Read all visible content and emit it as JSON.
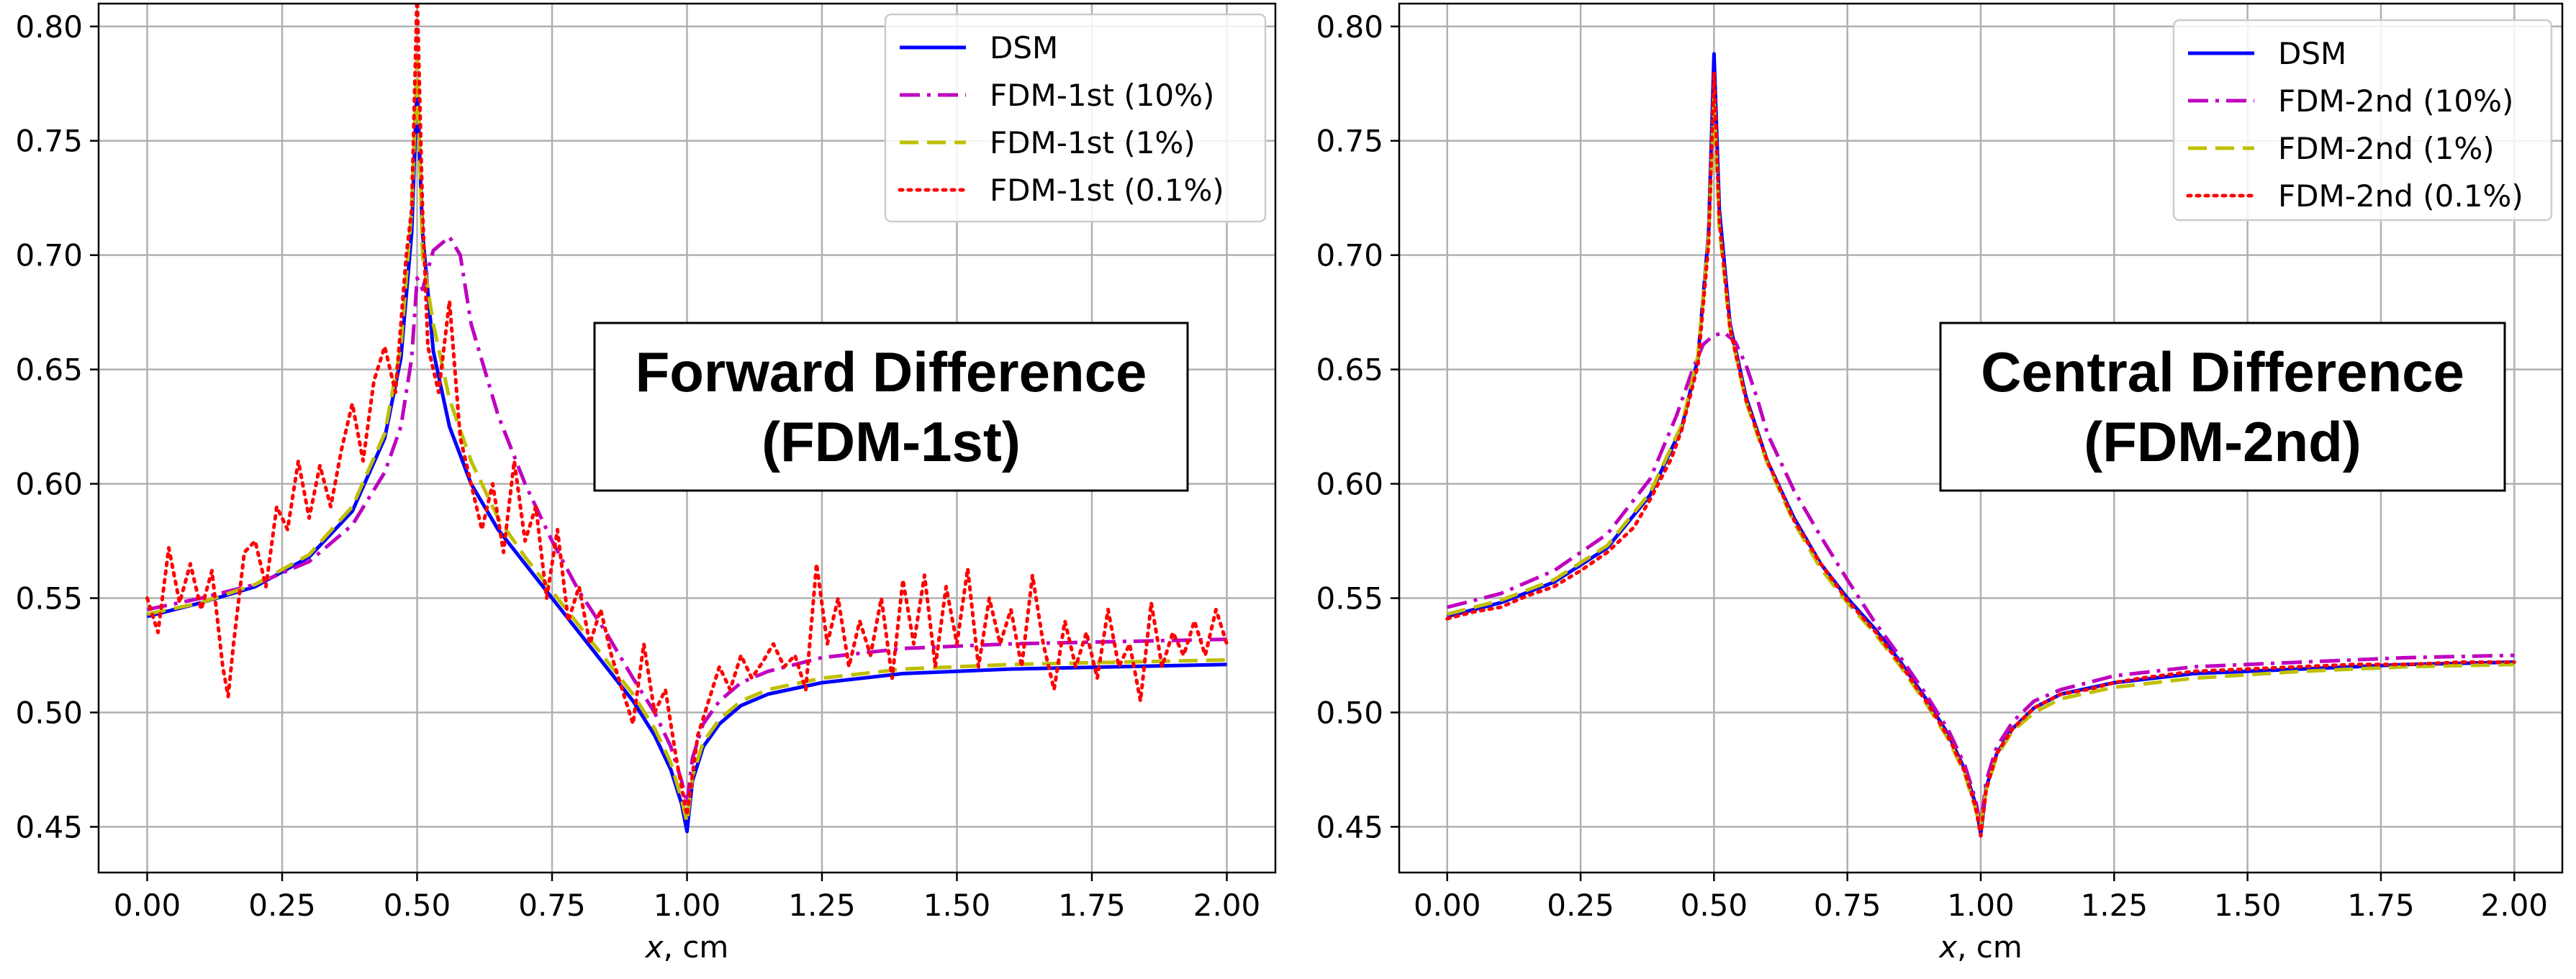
{
  "chart_data": [
    {
      "type": "line",
      "title": "",
      "xlabel_var": "x",
      "xlabel_unit": ", cm",
      "ylabel": "",
      "xlim": [
        -0.09,
        2.09
      ],
      "ylim": [
        0.43,
        0.81
      ],
      "xticks": [
        "0.00",
        "0.25",
        "0.50",
        "0.75",
        "1.00",
        "1.25",
        "1.50",
        "1.75",
        "2.00"
      ],
      "yticks": [
        "0.45",
        "0.50",
        "0.55",
        "0.60",
        "0.65",
        "0.70",
        "0.75",
        "0.80"
      ],
      "grid": true,
      "legend_position": "top-right",
      "annotation": {
        "line1": "Forward Difference",
        "line2": "(FDM-1st)"
      },
      "series": [
        {
          "name": "DSM",
          "color": "#0000ff",
          "dash": "solid",
          "x": [
            0.0,
            0.1,
            0.2,
            0.3,
            0.38,
            0.44,
            0.47,
            0.49,
            0.5,
            0.51,
            0.53,
            0.56,
            0.6,
            0.65,
            0.7,
            0.75,
            0.8,
            0.85,
            0.9,
            0.94,
            0.97,
            0.99,
            1.0,
            1.01,
            1.03,
            1.06,
            1.1,
            1.15,
            1.25,
            1.4,
            1.6,
            1.8,
            2.0
          ],
          "y": [
            0.542,
            0.548,
            0.555,
            0.568,
            0.588,
            0.62,
            0.655,
            0.71,
            0.775,
            0.71,
            0.658,
            0.625,
            0.6,
            0.58,
            0.565,
            0.55,
            0.535,
            0.52,
            0.505,
            0.49,
            0.475,
            0.46,
            0.448,
            0.47,
            0.485,
            0.495,
            0.503,
            0.508,
            0.513,
            0.517,
            0.519,
            0.52,
            0.521
          ]
        },
        {
          "name": "FDM-1st (10%)",
          "color": "#bf00bf",
          "dash": "dashdot",
          "x": [
            0.0,
            0.1,
            0.2,
            0.3,
            0.38,
            0.44,
            0.47,
            0.49,
            0.5,
            0.51,
            0.53,
            0.56,
            0.58,
            0.6,
            0.65,
            0.7,
            0.75,
            0.8,
            0.85,
            0.9,
            0.94,
            0.97,
            0.99,
            1.0,
            1.01,
            1.03,
            1.06,
            1.1,
            1.15,
            1.25,
            1.4,
            1.6,
            1.8,
            2.0
          ],
          "y": [
            0.545,
            0.55,
            0.556,
            0.566,
            0.582,
            0.605,
            0.625,
            0.655,
            0.69,
            0.685,
            0.702,
            0.708,
            0.7,
            0.67,
            0.63,
            0.6,
            0.575,
            0.553,
            0.535,
            0.515,
            0.5,
            0.485,
            0.47,
            0.46,
            0.48,
            0.495,
            0.505,
            0.513,
            0.518,
            0.524,
            0.528,
            0.53,
            0.531,
            0.532
          ]
        },
        {
          "name": "FDM-1st (1%)",
          "color": "#bfbf00",
          "dash": "dashed",
          "x": [
            0.0,
            0.1,
            0.2,
            0.3,
            0.38,
            0.44,
            0.47,
            0.49,
            0.5,
            0.51,
            0.53,
            0.56,
            0.6,
            0.65,
            0.7,
            0.75,
            0.8,
            0.85,
            0.9,
            0.94,
            0.97,
            0.99,
            1.0,
            1.01,
            1.03,
            1.06,
            1.1,
            1.15,
            1.25,
            1.4,
            1.6,
            1.8,
            2.0
          ],
          "y": [
            0.543,
            0.548,
            0.556,
            0.569,
            0.59,
            0.622,
            0.66,
            0.72,
            0.785,
            0.7,
            0.67,
            0.637,
            0.61,
            0.585,
            0.568,
            0.553,
            0.538,
            0.523,
            0.508,
            0.493,
            0.478,
            0.462,
            0.452,
            0.472,
            0.487,
            0.497,
            0.505,
            0.51,
            0.515,
            0.519,
            0.521,
            0.522,
            0.523
          ]
        },
        {
          "name": "FDM-1st (0.1%)",
          "color": "#ff0000",
          "dash": "dotted",
          "x": [
            0.0,
            0.02,
            0.04,
            0.06,
            0.08,
            0.1,
            0.12,
            0.14,
            0.15,
            0.16,
            0.18,
            0.2,
            0.22,
            0.24,
            0.26,
            0.28,
            0.3,
            0.32,
            0.34,
            0.36,
            0.38,
            0.4,
            0.42,
            0.44,
            0.46,
            0.48,
            0.49,
            0.5,
            0.51,
            0.52,
            0.54,
            0.56,
            0.58,
            0.6,
            0.62,
            0.64,
            0.66,
            0.68,
            0.7,
            0.72,
            0.74,
            0.76,
            0.78,
            0.8,
            0.82,
            0.84,
            0.86,
            0.88,
            0.9,
            0.92,
            0.94,
            0.96,
            0.98,
            1.0,
            1.02,
            1.04,
            1.06,
            1.08,
            1.1,
            1.12,
            1.14,
            1.16,
            1.18,
            1.2,
            1.22,
            1.24,
            1.26,
            1.28,
            1.3,
            1.32,
            1.34,
            1.36,
            1.38,
            1.4,
            1.42,
            1.44,
            1.46,
            1.48,
            1.5,
            1.52,
            1.54,
            1.56,
            1.58,
            1.6,
            1.62,
            1.64,
            1.66,
            1.68,
            1.7,
            1.72,
            1.74,
            1.76,
            1.78,
            1.8,
            1.82,
            1.84,
            1.86,
            1.88,
            1.9,
            1.92,
            1.94,
            1.96,
            1.98,
            2.0
          ],
          "y": [
            0.55,
            0.535,
            0.572,
            0.548,
            0.565,
            0.545,
            0.562,
            0.52,
            0.507,
            0.53,
            0.57,
            0.575,
            0.555,
            0.59,
            0.58,
            0.61,
            0.585,
            0.608,
            0.59,
            0.615,
            0.635,
            0.61,
            0.645,
            0.66,
            0.64,
            0.7,
            0.72,
            0.815,
            0.72,
            0.66,
            0.64,
            0.68,
            0.62,
            0.6,
            0.58,
            0.6,
            0.57,
            0.61,
            0.575,
            0.59,
            0.55,
            0.58,
            0.54,
            0.555,
            0.53,
            0.545,
            0.525,
            0.51,
            0.495,
            0.53,
            0.5,
            0.51,
            0.48,
            0.455,
            0.49,
            0.505,
            0.52,
            0.51,
            0.525,
            0.515,
            0.522,
            0.53,
            0.52,
            0.525,
            0.51,
            0.565,
            0.53,
            0.55,
            0.52,
            0.54,
            0.525,
            0.55,
            0.515,
            0.558,
            0.53,
            0.56,
            0.52,
            0.555,
            0.53,
            0.563,
            0.52,
            0.55,
            0.53,
            0.545,
            0.52,
            0.56,
            0.53,
            0.51,
            0.54,
            0.52,
            0.535,
            0.515,
            0.545,
            0.52,
            0.53,
            0.505,
            0.548,
            0.52,
            0.535,
            0.525,
            0.54,
            0.525,
            0.545,
            0.53
          ]
        }
      ]
    },
    {
      "type": "line",
      "title": "",
      "xlabel_var": "x",
      "xlabel_unit": ", cm",
      "ylabel": "",
      "xlim": [
        -0.09,
        2.09
      ],
      "ylim": [
        0.43,
        0.81
      ],
      "xticks": [
        "0.00",
        "0.25",
        "0.50",
        "0.75",
        "1.00",
        "1.25",
        "1.50",
        "1.75",
        "2.00"
      ],
      "yticks": [
        "0.45",
        "0.50",
        "0.55",
        "0.60",
        "0.65",
        "0.70",
        "0.75",
        "0.80"
      ],
      "grid": true,
      "legend_position": "top-right",
      "annotation": {
        "line1": "Central Difference",
        "line2": "(FDM-2nd)"
      },
      "series": [
        {
          "name": "DSM",
          "color": "#0000ff",
          "dash": "solid",
          "x": [
            0.0,
            0.1,
            0.2,
            0.3,
            0.38,
            0.44,
            0.47,
            0.49,
            0.5,
            0.51,
            0.53,
            0.56,
            0.6,
            0.65,
            0.7,
            0.75,
            0.8,
            0.85,
            0.9,
            0.94,
            0.97,
            0.99,
            1.0,
            1.01,
            1.03,
            1.06,
            1.1,
            1.15,
            1.25,
            1.4,
            1.6,
            1.8,
            2.0
          ],
          "y": [
            0.542,
            0.548,
            0.557,
            0.572,
            0.595,
            0.625,
            0.655,
            0.71,
            0.788,
            0.72,
            0.67,
            0.638,
            0.61,
            0.585,
            0.565,
            0.55,
            0.537,
            0.522,
            0.505,
            0.49,
            0.475,
            0.46,
            0.447,
            0.467,
            0.482,
            0.493,
            0.502,
            0.508,
            0.513,
            0.517,
            0.519,
            0.521,
            0.522
          ]
        },
        {
          "name": "FDM-2nd (10%)",
          "color": "#bf00bf",
          "dash": "dashdot",
          "x": [
            0.0,
            0.1,
            0.2,
            0.3,
            0.38,
            0.43,
            0.46,
            0.48,
            0.5,
            0.52,
            0.54,
            0.56,
            0.58,
            0.6,
            0.65,
            0.7,
            0.75,
            0.8,
            0.85,
            0.9,
            0.94,
            0.97,
            0.99,
            1.0,
            1.01,
            1.03,
            1.06,
            1.1,
            1.15,
            1.25,
            1.4,
            1.6,
            1.8,
            2.0
          ],
          "y": [
            0.546,
            0.552,
            0.562,
            0.578,
            0.602,
            0.63,
            0.65,
            0.661,
            0.665,
            0.666,
            0.662,
            0.652,
            0.638,
            0.622,
            0.597,
            0.577,
            0.558,
            0.54,
            0.524,
            0.507,
            0.492,
            0.477,
            0.462,
            0.45,
            0.47,
            0.485,
            0.496,
            0.505,
            0.51,
            0.516,
            0.52,
            0.522,
            0.524,
            0.525
          ]
        },
        {
          "name": "FDM-2nd (1%)",
          "color": "#bfbf00",
          "dash": "dashed",
          "x": [
            0.0,
            0.1,
            0.2,
            0.3,
            0.38,
            0.44,
            0.47,
            0.49,
            0.5,
            0.51,
            0.53,
            0.56,
            0.6,
            0.65,
            0.7,
            0.75,
            0.8,
            0.85,
            0.9,
            0.94,
            0.97,
            0.99,
            1.0,
            1.01,
            1.03,
            1.06,
            1.1,
            1.15,
            1.25,
            1.4,
            1.6,
            1.8,
            2.0
          ],
          "y": [
            0.543,
            0.549,
            0.558,
            0.573,
            0.596,
            0.626,
            0.656,
            0.708,
            0.77,
            0.712,
            0.668,
            0.636,
            0.609,
            0.583,
            0.563,
            0.548,
            0.535,
            0.52,
            0.503,
            0.488,
            0.473,
            0.458,
            0.45,
            0.466,
            0.481,
            0.492,
            0.5,
            0.506,
            0.511,
            0.515,
            0.518,
            0.52,
            0.521
          ]
        },
        {
          "name": "FDM-2nd (0.1%)",
          "color": "#ff0000",
          "dash": "dotted",
          "x": [
            0.0,
            0.05,
            0.1,
            0.15,
            0.2,
            0.25,
            0.3,
            0.35,
            0.38,
            0.42,
            0.44,
            0.47,
            0.49,
            0.5,
            0.51,
            0.53,
            0.56,
            0.6,
            0.65,
            0.7,
            0.75,
            0.8,
            0.85,
            0.9,
            0.94,
            0.97,
            0.99,
            1.0,
            1.01,
            1.03,
            1.06,
            1.1,
            1.15,
            1.2,
            1.25,
            1.3,
            1.4,
            1.5,
            1.6,
            1.7,
            1.8,
            1.9,
            2.0
          ],
          "y": [
            0.541,
            0.544,
            0.546,
            0.551,
            0.555,
            0.562,
            0.57,
            0.581,
            0.593,
            0.611,
            0.624,
            0.652,
            0.705,
            0.78,
            0.715,
            0.668,
            0.637,
            0.61,
            0.584,
            0.565,
            0.549,
            0.536,
            0.521,
            0.504,
            0.489,
            0.474,
            0.459,
            0.446,
            0.466,
            0.482,
            0.493,
            0.502,
            0.508,
            0.51,
            0.513,
            0.515,
            0.518,
            0.519,
            0.52,
            0.521,
            0.521,
            0.522,
            0.522
          ]
        }
      ]
    }
  ]
}
